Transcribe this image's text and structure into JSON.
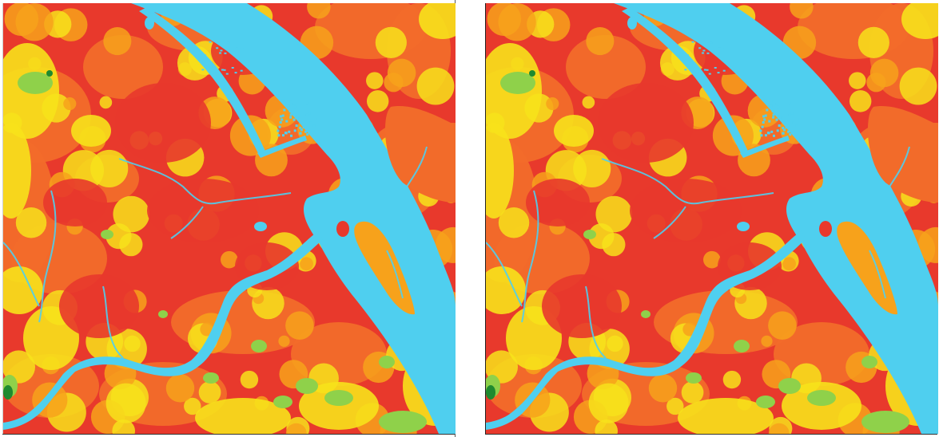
{
  "figure": {
    "panels": [
      {
        "id": "left",
        "name": "map-panel-left"
      },
      {
        "id": "right",
        "name": "map-panel-right"
      }
    ],
    "palette": {
      "water": "#4fcfef",
      "very_high": "#e8392c",
      "high": "#f26b2a",
      "medium": "#f7a21b",
      "low": "#f7e21b",
      "very_low": "#8fd14a",
      "lowest": "#1f8a2f"
    },
    "features": {
      "main_river": "wide-river-diagonal",
      "tributary": "curving-river-channel",
      "islands": "river-islands",
      "canals": "thin-canals"
    }
  }
}
